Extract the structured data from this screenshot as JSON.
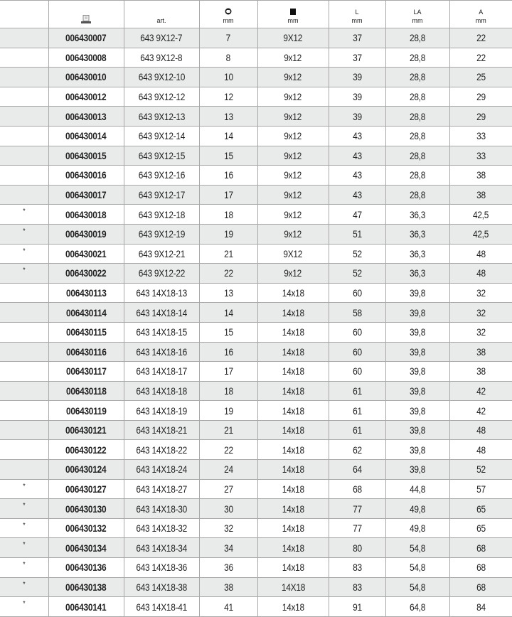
{
  "header": {
    "col0": "",
    "col1_icon": "catalog-icon",
    "col2": "art.",
    "col3_icon": "hex-socket-icon",
    "col3_unit": "mm",
    "col4_icon": "square-drive-icon",
    "col4_unit": "mm",
    "col5": "L",
    "col5_unit": "mm",
    "col6": "LA",
    "col6_unit": "mm",
    "col7": "A",
    "col7_unit": "mm"
  },
  "colors": {
    "stripe": "#e9eaea",
    "border": "#a8a8a8"
  },
  "rows": [
    [
      "",
      "006430007",
      "643 9X12-7",
      "7",
      "9X12",
      "37",
      "28,8",
      "22"
    ],
    [
      "",
      "006430008",
      "643 9X12-8",
      "8",
      "9x12",
      "37",
      "28,8",
      "22"
    ],
    [
      "",
      "006430010",
      "643 9X12-10",
      "10",
      "9x12",
      "39",
      "28,8",
      "25"
    ],
    [
      "",
      "006430012",
      "643 9X12-12",
      "12",
      "9x12",
      "39",
      "28,8",
      "29"
    ],
    [
      "",
      "006430013",
      "643 9X12-13",
      "13",
      "9x12",
      "39",
      "28,8",
      "29"
    ],
    [
      "",
      "006430014",
      "643 9X12-14",
      "14",
      "9x12",
      "43",
      "28,8",
      "33"
    ],
    [
      "",
      "006430015",
      "643 9X12-15",
      "15",
      "9x12",
      "43",
      "28,8",
      "33"
    ],
    [
      "",
      "006430016",
      "643 9X12-16",
      "16",
      "9x12",
      "43",
      "28,8",
      "38"
    ],
    [
      "",
      "006430017",
      "643 9X12-17",
      "17",
      "9x12",
      "43",
      "28,8",
      "38"
    ],
    [
      "*",
      "006430018",
      "643 9X12-18",
      "18",
      "9x12",
      "47",
      "36,3",
      "42,5"
    ],
    [
      "*",
      "006430019",
      "643 9X12-19",
      "19",
      "9x12",
      "51",
      "36,3",
      "42,5"
    ],
    [
      "*",
      "006430021",
      "643 9X12-21",
      "21",
      "9X12",
      "52",
      "36,3",
      "48"
    ],
    [
      "*",
      "006430022",
      "643 9X12-22",
      "22",
      "9x12",
      "52",
      "36,3",
      "48"
    ],
    [
      "",
      "006430113",
      "643 14X18-13",
      "13",
      "14x18",
      "60",
      "39,8",
      "32"
    ],
    [
      "",
      "006430114",
      "643 14X18-14",
      "14",
      "14x18",
      "58",
      "39,8",
      "32"
    ],
    [
      "",
      "006430115",
      "643 14X18-15",
      "15",
      "14x18",
      "60",
      "39,8",
      "32"
    ],
    [
      "",
      "006430116",
      "643 14X18-16",
      "16",
      "14x18",
      "60",
      "39,8",
      "38"
    ],
    [
      "",
      "006430117",
      "643 14X18-17",
      "17",
      "14x18",
      "60",
      "39,8",
      "38"
    ],
    [
      "",
      "006430118",
      "643 14X18-18",
      "18",
      "14x18",
      "61",
      "39,8",
      "42"
    ],
    [
      "",
      "006430119",
      "643 14X18-19",
      "19",
      "14x18",
      "61",
      "39,8",
      "42"
    ],
    [
      "",
      "006430121",
      "643 14X18-21",
      "21",
      "14x18",
      "61",
      "39,8",
      "48"
    ],
    [
      "",
      "006430122",
      "643 14X18-22",
      "22",
      "14x18",
      "62",
      "39,8",
      "48"
    ],
    [
      "",
      "006430124",
      "643 14X18-24",
      "24",
      "14x18",
      "64",
      "39,8",
      "52"
    ],
    [
      "*",
      "006430127",
      "643 14X18-27",
      "27",
      "14x18",
      "68",
      "44,8",
      "57"
    ],
    [
      "*",
      "006430130",
      "643 14X18-30",
      "30",
      "14x18",
      "77",
      "49,8",
      "65"
    ],
    [
      "*",
      "006430132",
      "643 14X18-32",
      "32",
      "14x18",
      "77",
      "49,8",
      "65"
    ],
    [
      "*",
      "006430134",
      "643 14X18-34",
      "34",
      "14x18",
      "80",
      "54,8",
      "68"
    ],
    [
      "*",
      "006430136",
      "643 14X18-36",
      "36",
      "14x18",
      "83",
      "54,8",
      "68"
    ],
    [
      "*",
      "006430138",
      "643 14X18-38",
      "38",
      "14X18",
      "83",
      "54,8",
      "68"
    ],
    [
      "*",
      "006430141",
      "643 14X18-41",
      "41",
      "14x18",
      "91",
      "64,8",
      "84"
    ]
  ]
}
